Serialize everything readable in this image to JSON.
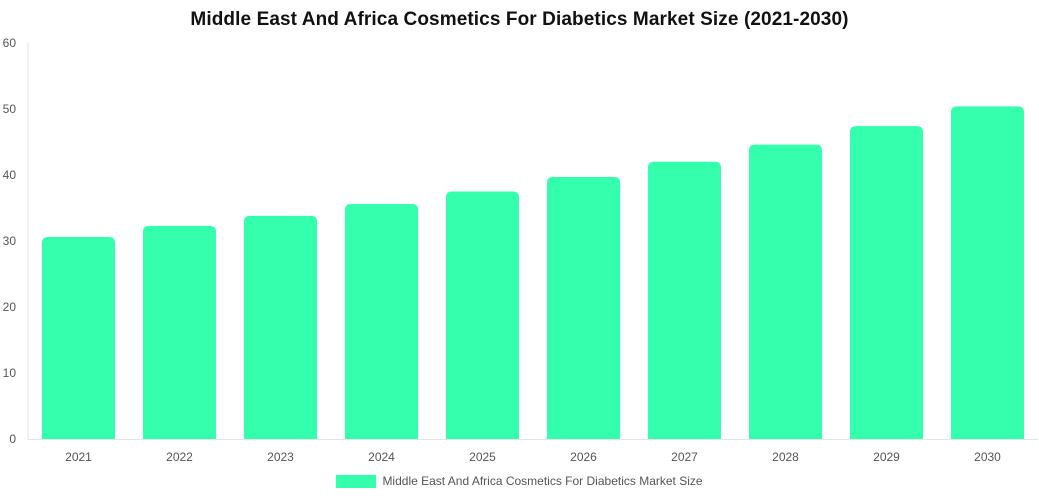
{
  "chart_data": {
    "type": "bar",
    "title": "Middle East And Africa Cosmetics For Diabetics Market Size (2021-2030)",
    "categories": [
      "2021",
      "2022",
      "2023",
      "2024",
      "2025",
      "2026",
      "2027",
      "2028",
      "2029",
      "2030"
    ],
    "series": [
      {
        "name": "Middle East And Africa Cosmetics For Diabetics Market Size",
        "values": [
          30.6,
          32.3,
          33.8,
          35.6,
          37.5,
          39.7,
          42.0,
          44.6,
          47.4,
          50.4
        ]
      }
    ],
    "xlabel": "",
    "ylabel": "",
    "ylim": [
      0,
      60
    ],
    "yticks": [
      "0",
      "10",
      "20",
      "30",
      "40",
      "50",
      "60"
    ],
    "grid": false,
    "legend_position": "bottom",
    "colors": {
      "bar": "#33FFAD"
    }
  }
}
